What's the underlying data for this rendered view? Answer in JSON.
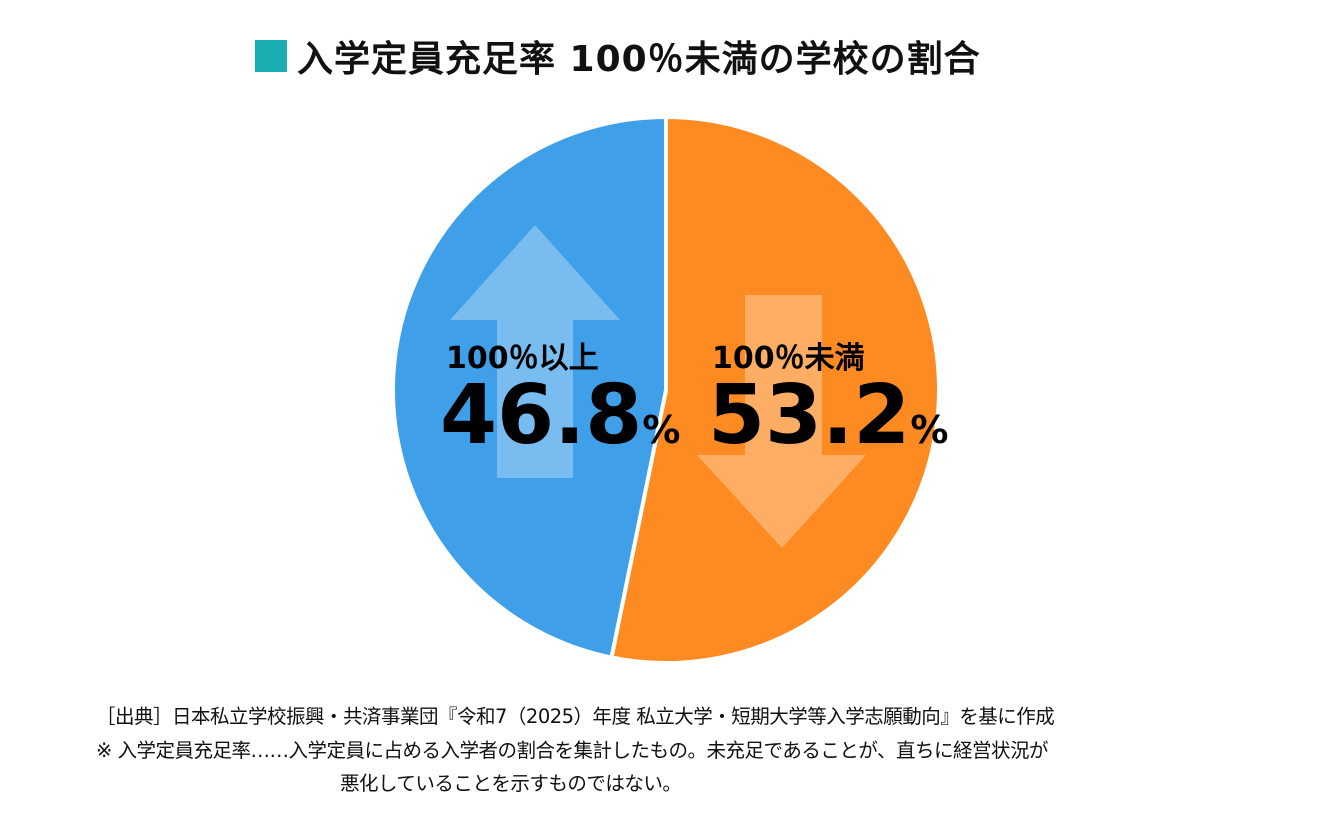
{
  "colors": {
    "title_marker": "#1aadb0",
    "blue": "#3f9fe8",
    "orange": "#fd8b22"
  },
  "chart_data": {
    "type": "pie",
    "title": "入学定員充足率 100％未満の学校の割合",
    "slices": [
      {
        "label": "100％未満",
        "value": 53.2,
        "display": "53.2",
        "unit": "%",
        "color": "#fd8b22",
        "arrow": "down"
      },
      {
        "label": "100％以上",
        "value": 46.8,
        "display": "46.8",
        "unit": "%",
        "color": "#3f9fe8",
        "arrow": "up"
      }
    ],
    "start": "top",
    "direction": "clockwise"
  },
  "notes": {
    "source": "［出典］日本私立学校振興・共済事業団『令和7（2025）年度 私立大学・短期大学等入学志願動向』を基に作成",
    "note1": "※ 入学定員充足率……入学定員に占める入学者の割合を集計したもの。未充足であることが、直ちに経営状況が",
    "note2": "悪化していることを示すものではない。"
  }
}
